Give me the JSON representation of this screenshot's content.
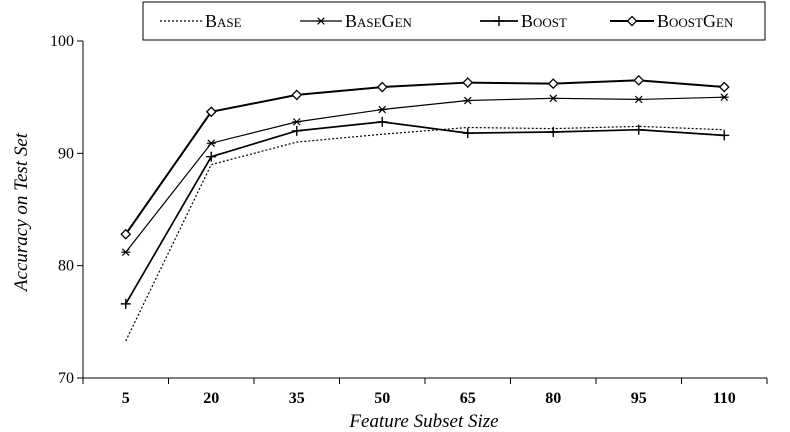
{
  "chart_data": {
    "type": "line",
    "title": "",
    "xlabel": "Feature Subset Size",
    "ylabel": "Accuracy on Test Set",
    "categories": [
      "5",
      "20",
      "35",
      "50",
      "65",
      "80",
      "95",
      "110"
    ],
    "ylim": [
      70,
      100
    ],
    "yticks": [
      70,
      80,
      90,
      100
    ],
    "grid": false,
    "legend_position": "top",
    "series": [
      {
        "name": "Base",
        "style": "dotted",
        "marker": "none",
        "color": "#000000",
        "values": [
          73.3,
          89.0,
          91.0,
          91.7,
          92.3,
          92.2,
          92.4,
          92.1
        ]
      },
      {
        "name": "BaseGen",
        "style": "solid-thin",
        "marker": "asterisk",
        "color": "#000000",
        "values": [
          81.2,
          90.9,
          92.8,
          93.9,
          94.7,
          94.9,
          94.8,
          95.0
        ]
      },
      {
        "name": "Boost",
        "style": "solid",
        "marker": "plus",
        "color": "#000000",
        "values": [
          76.6,
          89.7,
          92.0,
          92.8,
          91.8,
          91.9,
          92.1,
          91.6
        ]
      },
      {
        "name": "BoostGen",
        "style": "solid-thick",
        "marker": "diamond",
        "color": "#000000",
        "values": [
          82.8,
          93.7,
          95.2,
          95.9,
          96.3,
          96.2,
          96.5,
          95.9
        ]
      }
    ]
  }
}
